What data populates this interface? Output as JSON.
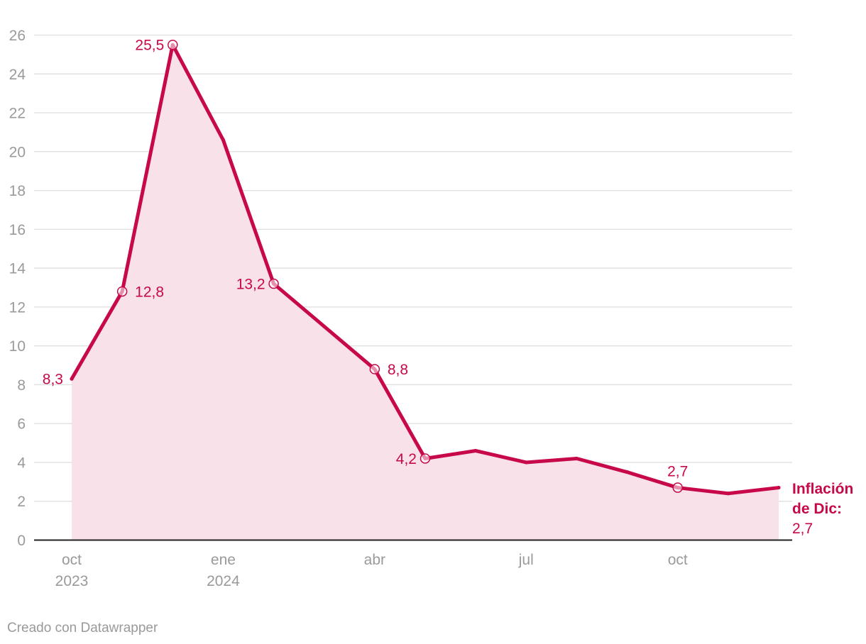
{
  "chart_data": {
    "type": "area",
    "title": "",
    "xlabel": "",
    "ylabel": "",
    "ylim": [
      0,
      26
    ],
    "yticks": [
      0,
      2,
      4,
      6,
      8,
      10,
      12,
      14,
      16,
      18,
      20,
      22,
      24,
      26
    ],
    "grid": true,
    "x_ticks": [
      {
        "index": 0,
        "line1": "oct",
        "line2": "2023"
      },
      {
        "index": 3,
        "line1": "ene",
        "line2": "2024"
      },
      {
        "index": 6,
        "line1": "abr",
        "line2": ""
      },
      {
        "index": 9,
        "line1": "jul",
        "line2": ""
      },
      {
        "index": 12,
        "line1": "oct",
        "line2": ""
      }
    ],
    "series": [
      {
        "categories": [
          "oct 2023",
          "nov 2023",
          "dic 2023",
          "ene 2024",
          "feb 2024",
          "mar 2024",
          "abr 2024",
          "may 2024",
          "jun 2024",
          "jul 2024",
          "ago 2024",
          "sep 2024",
          "oct 2024",
          "nov 2024",
          "dic 2024"
        ],
        "values": [
          8.3,
          12.8,
          25.5,
          20.6,
          13.2,
          11.0,
          8.8,
          4.2,
          4.6,
          4.0,
          4.2,
          3.5,
          2.7,
          2.4,
          2.7
        ],
        "color": "#c7084a",
        "fill_color": "#f8e1e9"
      }
    ],
    "data_labels": [
      {
        "index": 0,
        "text": "8,3",
        "marker": false,
        "position": "left"
      },
      {
        "index": 1,
        "text": "12,8",
        "marker": true,
        "position": "right"
      },
      {
        "index": 2,
        "text": "25,5",
        "marker": true,
        "position": "left"
      },
      {
        "index": 4,
        "text": "13,2",
        "marker": true,
        "position": "left"
      },
      {
        "index": 6,
        "text": "8,8",
        "marker": true,
        "position": "right"
      },
      {
        "index": 7,
        "text": "4,2",
        "marker": true,
        "position": "left"
      },
      {
        "index": 12,
        "text": "2,7",
        "marker": true,
        "position": "above"
      }
    ],
    "end_label": {
      "line1": "Inflación",
      "line2": "de Dic:",
      "value": "2,7"
    }
  },
  "footer": {
    "credit": "Creado con Datawrapper"
  }
}
